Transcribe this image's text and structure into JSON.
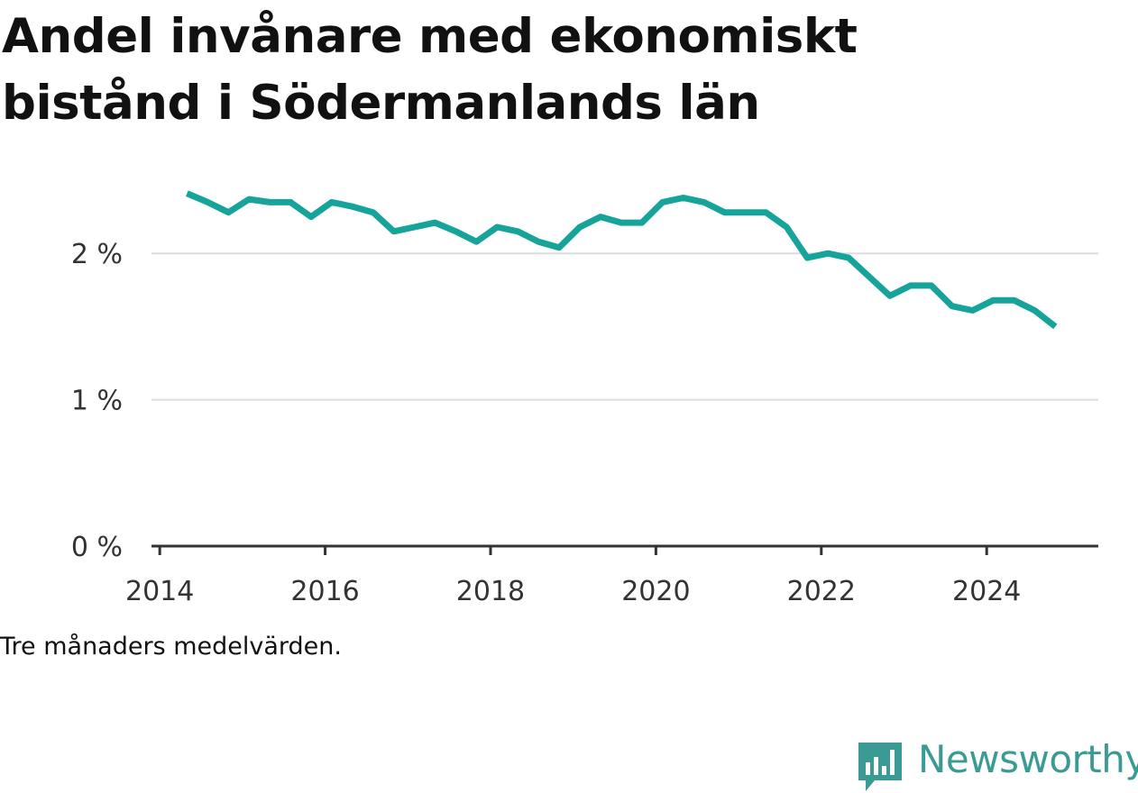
{
  "chart_data": {
    "type": "line",
    "title": "Andel invånare med ekonomiskt bistånd i Södermanlands län",
    "ylabel": "",
    "xlabel": "",
    "ylim": [
      0,
      2.5
    ],
    "xlim": [
      2013.9,
      2025.35
    ],
    "y_ticks": [
      0,
      1,
      2
    ],
    "y_tick_labels": [
      "0 %",
      "1 %",
      "2 %"
    ],
    "x_ticks": [
      2014,
      2016,
      2018,
      2020,
      2022,
      2024
    ],
    "x_tick_labels": [
      "2014",
      "2016",
      "2018",
      "2020",
      "2022",
      "2024"
    ],
    "grid": "horizontal",
    "color": "#16a39a",
    "series": [
      {
        "x": [
          2014.33,
          2014.58,
          2014.83,
          2015.08,
          2015.33,
          2015.58,
          2015.83,
          2016.08,
          2016.33,
          2016.58,
          2016.83,
          2017.08,
          2017.33,
          2017.58,
          2017.83,
          2018.08,
          2018.33,
          2018.58,
          2018.83,
          2019.08,
          2019.33,
          2019.58,
          2019.83,
          2020.08,
          2020.33,
          2020.58,
          2020.83,
          2021.08,
          2021.33,
          2021.58,
          2021.83,
          2022.08,
          2022.33,
          2022.58,
          2022.83,
          2023.08,
          2023.33,
          2023.58,
          2023.83,
          2024.08,
          2024.33,
          2024.58,
          2024.83
        ],
        "values": [
          2.41,
          2.35,
          2.28,
          2.37,
          2.35,
          2.35,
          2.25,
          2.35,
          2.32,
          2.28,
          2.15,
          2.18,
          2.21,
          2.15,
          2.08,
          2.18,
          2.15,
          2.08,
          2.04,
          2.18,
          2.25,
          2.21,
          2.21,
          2.35,
          2.38,
          2.35,
          2.28,
          2.28,
          2.28,
          2.18,
          1.97,
          2.0,
          1.97,
          1.84,
          1.71,
          1.78,
          1.78,
          1.64,
          1.61,
          1.68,
          1.68,
          1.61,
          1.5
        ]
      }
    ]
  },
  "note": "Tre månaders medelvärden.",
  "brand": {
    "name": "Newsworthy",
    "color": "#3a9a94",
    "icon": "newsworthy-logo-icon"
  }
}
